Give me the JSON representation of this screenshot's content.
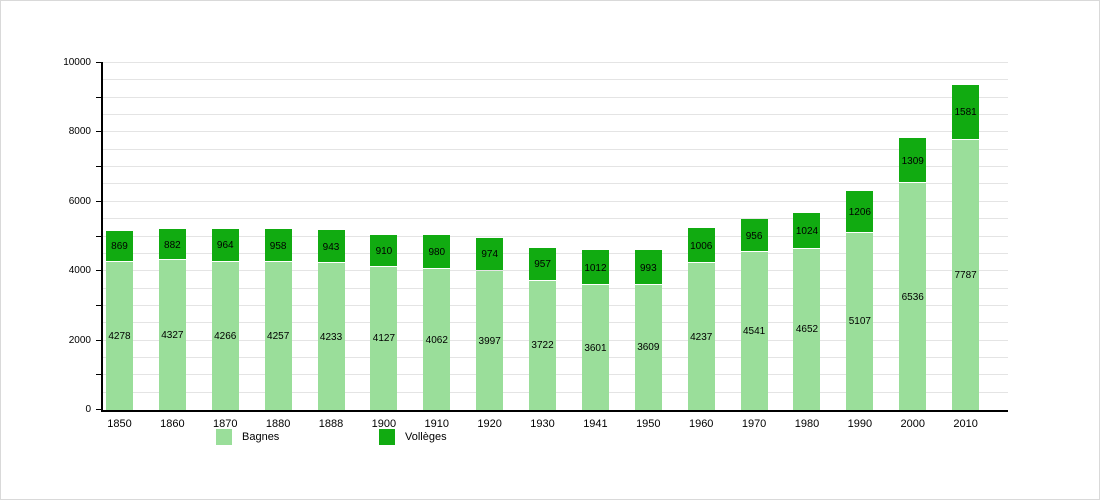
{
  "chart_data": {
    "type": "bar",
    "stacked": true,
    "title": "",
    "categories": [
      "1850",
      "1860",
      "1870",
      "1880",
      "1888",
      "1900",
      "1910",
      "1920",
      "1930",
      "1941",
      "1950",
      "1960",
      "1970",
      "1980",
      "1990",
      "2000",
      "2010"
    ],
    "series": [
      {
        "name": "Bagnes",
        "color": "#9ade9a",
        "values": [
          4278,
          4327,
          4266,
          4257,
          4233,
          4127,
          4062,
          3997,
          3722,
          3601,
          3609,
          4237,
          4541,
          4652,
          5107,
          6536,
          7787
        ]
      },
      {
        "name": "Vollèges",
        "color": "#11ab11",
        "values": [
          869,
          882,
          964,
          958,
          943,
          910,
          980,
          974,
          957,
          1012,
          993,
          1006,
          956,
          1024,
          1206,
          1309,
          1581
        ]
      }
    ],
    "xlabel": "",
    "ylabel": "",
    "ylim": [
      0,
      10000
    ],
    "y_label_step": 2000,
    "y_tick_step": 1000,
    "grid_step": 500,
    "grid": true,
    "value_labels": true,
    "legend_position": "bottom-left"
  },
  "colors": {
    "background": "#ffffff",
    "grid": "#e4e4e4",
    "axis": "#000000",
    "text": "#000000",
    "segment_separator": "#ffffff"
  }
}
